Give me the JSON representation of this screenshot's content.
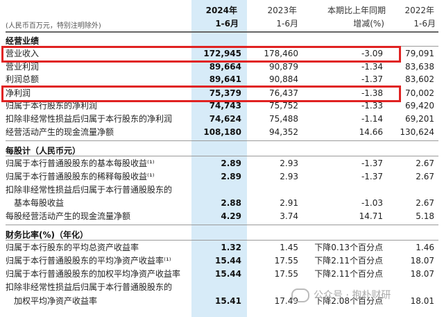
{
  "header": {
    "units_note": "(人民币百万元，特别注明除外)",
    "col1_top": "2024年",
    "col1_bottom": "1-6月",
    "col2_top": "2023年",
    "col2_bottom": "1-6月",
    "col3_top": "本期比上年同期",
    "col3_bottom": "增减(%)",
    "col4_top": "2022年",
    "col4_bottom": "1-6月"
  },
  "sections": {
    "performance": "经营业绩",
    "per_share": "每股计（人民币元）",
    "ratios": "财务比率(%)（年化）"
  },
  "performance_rows": [
    {
      "label": "营业收入",
      "v2024": "172,945",
      "v2023": "178,460",
      "change": "-3.09",
      "v2022": "79,091"
    },
    {
      "label": "营业利润",
      "v2024": "89,664",
      "v2023": "90,879",
      "change": "-1.34",
      "v2022": "83,638"
    },
    {
      "label": "利润总额",
      "v2024": "89,641",
      "v2023": "90,884",
      "change": "-1.37",
      "v2022": "83,602"
    },
    {
      "label": "净利润",
      "v2024": "75,379",
      "v2023": "76,437",
      "change": "-1.38",
      "v2022": "70,002"
    },
    {
      "label": "归属于本行股东的净利润",
      "v2024": "74,743",
      "v2023": "75,752",
      "change": "-1.33",
      "v2022": "69,420"
    },
    {
      "label": "扣除非经常性损益后归属于本行股东的净利润",
      "v2024": "74,624",
      "v2023": "75,488",
      "change": "-1.14",
      "v2022": "69,201"
    },
    {
      "label": "经营活动产生的现金流量净额",
      "v2024": "108,180",
      "v2023": "94,352",
      "change": "14.66",
      "v2022": "130,624"
    }
  ],
  "per_share_rows": [
    {
      "label": "归属于本行普通股股东的基本每股收益⁽¹⁾",
      "v2024": "2.89",
      "v2023": "2.93",
      "change": "-1.37",
      "v2022": "2.67"
    },
    {
      "label": "归属于本行普通股股东的稀释每股收益⁽¹⁾",
      "v2024": "2.89",
      "v2023": "2.93",
      "change": "-1.37",
      "v2022": "2.67"
    },
    {
      "label": "扣除非经常性损益后归属于本行普通股股东的",
      "v2024": "",
      "v2023": "",
      "change": "",
      "v2022": ""
    },
    {
      "label": "基本每股收益",
      "v2024": "2.88",
      "v2023": "2.91",
      "change": "-1.03",
      "v2022": "2.67"
    },
    {
      "label": "每股经营活动产生的现金流量净额",
      "v2024": "4.29",
      "v2023": "3.74",
      "change": "14.71",
      "v2022": "5.18"
    }
  ],
  "ratio_rows": [
    {
      "label": "归属于本行股东的平均总资产收益率",
      "v2024": "1.32",
      "v2023": "1.45",
      "change": "下降0.13个百分点",
      "v2022": "1.46"
    },
    {
      "label": "归属于本行普通股股东的平均净资产收益率⁽¹⁾",
      "v2024": "15.44",
      "v2023": "17.55",
      "change": "下降2.11个百分点",
      "v2022": "18.07"
    },
    {
      "label": "归属于本行普通股股东的加权平均净资产收益率",
      "v2024": "15.44",
      "v2023": "17.55",
      "change": "下降2.11个百分点",
      "v2022": "18.07"
    },
    {
      "label": "扣除非经常性损益后归属于本行普通股股东的",
      "v2024": "",
      "v2023": "",
      "change": "",
      "v2022": ""
    },
    {
      "label": "加权平均净资产收益率",
      "v2024": "15.41",
      "v2023": "17.49",
      "change": "下降2.08个百分点",
      "v2022": "18.01"
    }
  ],
  "watermark": "公众号 · 抱朴财研",
  "colors": {
    "highlight_column": "#d7ebf8",
    "red_box": "#e02222"
  }
}
